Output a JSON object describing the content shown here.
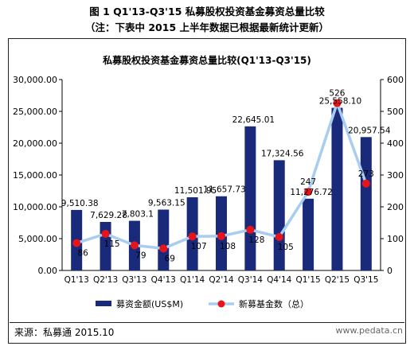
{
  "figure": {
    "title": "图 1 Q1'13-Q3'15 私募股权投资基金募资总量比较",
    "subtitle": "（注：下表中 2015 上半年数据已根据最新统计更新）"
  },
  "source": "来源：私募通 2015.10",
  "watermark": "www.pedata.cn",
  "chart_data": {
    "type": "bar",
    "title": "私募股权投资基金募资总量比较(Q1'13-Q3'15)",
    "categories": [
      "Q1'13",
      "Q2'13",
      "Q3'13",
      "Q4'13",
      "Q1'14",
      "Q2'14",
      "Q3'14",
      "Q4'14",
      "Q1'15",
      "Q2'15",
      "Q3'15"
    ],
    "series": [
      {
        "name": "募资金额(US$M)",
        "type": "bar",
        "axis": "left",
        "color": "#1a2a7a",
        "values": [
          9510.38,
          7629.28,
          7803.1,
          9563.15,
          11501.95,
          11657.73,
          22645.01,
          17324.56,
          11276.72,
          25558.1,
          20957.54
        ],
        "labels": [
          "9,510.38",
          "7,629.28",
          "7,803.1",
          "9,563.15",
          "11,501.95",
          "11,657.73",
          "22,645.01",
          "17,324.56",
          "11,276.72",
          "25,558.10",
          "20,957.54"
        ]
      },
      {
        "name": "新募基金数（总）",
        "type": "line",
        "axis": "right",
        "line_color": "#a8cdf0",
        "marker_color": "#e8141c",
        "values": [
          86,
          115,
          79,
          69,
          107,
          108,
          128,
          105,
          247,
          526,
          273
        ]
      }
    ],
    "y_left": {
      "min": 0,
      "max": 30000,
      "ticks": [
        "0.00",
        "5,000.00",
        "10,000.00",
        "15,000.00",
        "20,000.00",
        "25,000.00",
        "30,000.00"
      ]
    },
    "y_right": {
      "min": 0,
      "max": 600,
      "ticks": [
        "0",
        "100",
        "200",
        "300",
        "400",
        "500",
        "600"
      ]
    },
    "legend_position": "bottom"
  }
}
